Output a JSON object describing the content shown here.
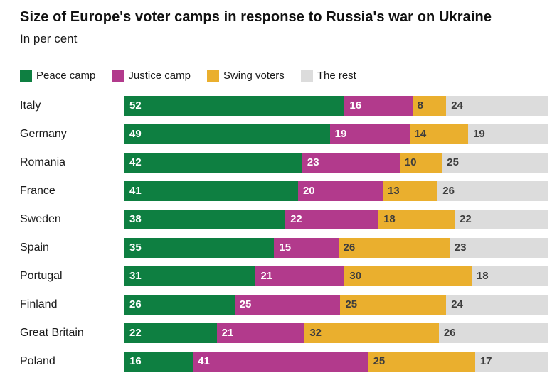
{
  "header": {
    "title": "Size of Europe's voter camps in response to Russia's war on Ukraine",
    "subtitle": "In per cent"
  },
  "colors": {
    "peace_camp": "#0e7f41",
    "justice_camp": "#b23a8c",
    "swing_voters": "#eaaf2e",
    "the_rest": "#dcdcdc",
    "label_on_dark": "#ffffff",
    "label_on_light": "#3d3d3d",
    "text": "#1a1a1a",
    "background": "#ffffff"
  },
  "chart_data": {
    "type": "bar",
    "stacked": true,
    "orientation": "horizontal",
    "title": "Size of Europe's voter camps in response to Russia's war on Ukraine",
    "subtitle": "In per cent",
    "unit": "per cent",
    "xlabel": "",
    "ylabel": "",
    "xlim": [
      0,
      100
    ],
    "grid": false,
    "legend_position": "top",
    "categories": [
      "Italy",
      "Germany",
      "Romania",
      "France",
      "Sweden",
      "Spain",
      "Portugal",
      "Finland",
      "Great Britain",
      "Poland"
    ],
    "series": [
      {
        "name": "Peace camp",
        "color": "#0e7f41",
        "label_color": "#ffffff",
        "values": [
          52,
          49,
          42,
          41,
          38,
          35,
          31,
          26,
          22,
          16
        ]
      },
      {
        "name": "Justice camp",
        "color": "#b23a8c",
        "label_color": "#ffffff",
        "values": [
          16,
          19,
          23,
          20,
          22,
          15,
          21,
          25,
          21,
          41
        ]
      },
      {
        "name": "Swing voters",
        "color": "#eaaf2e",
        "label_color": "#3d3d3d",
        "values": [
          8,
          14,
          10,
          13,
          18,
          26,
          30,
          25,
          32,
          25
        ]
      },
      {
        "name": "The rest",
        "color": "#dcdcdc",
        "label_color": "#3d3d3d",
        "values": [
          24,
          19,
          25,
          26,
          22,
          23,
          18,
          24,
          26,
          17
        ]
      }
    ]
  }
}
